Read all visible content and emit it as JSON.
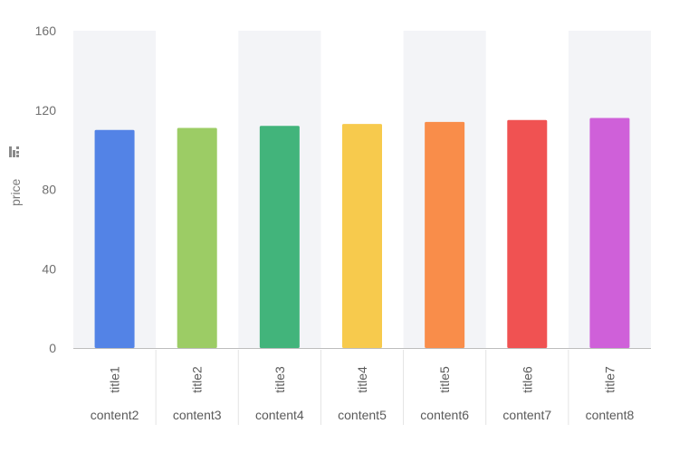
{
  "chart_data": {
    "type": "bar",
    "categories": [
      "title1",
      "title2",
      "title3",
      "title4",
      "title5",
      "title6",
      "title7"
    ],
    "sub_categories": [
      "content2",
      "content3",
      "content4",
      "content5",
      "content6",
      "content7",
      "content8"
    ],
    "values": [
      110,
      111,
      112,
      113,
      114,
      115,
      116
    ],
    "colors": [
      "#5383e6",
      "#9ccc65",
      "#42b47b",
      "#f7ca4d",
      "#f98d4a",
      "#f05252",
      "#cf60d9"
    ],
    "ylabel": "price",
    "ylim": [
      0,
      160
    ],
    "yticks": [
      0,
      40,
      80,
      120,
      160
    ],
    "band_color": "#f3f4f7",
    "ylabel_icon": "sort-icon"
  }
}
